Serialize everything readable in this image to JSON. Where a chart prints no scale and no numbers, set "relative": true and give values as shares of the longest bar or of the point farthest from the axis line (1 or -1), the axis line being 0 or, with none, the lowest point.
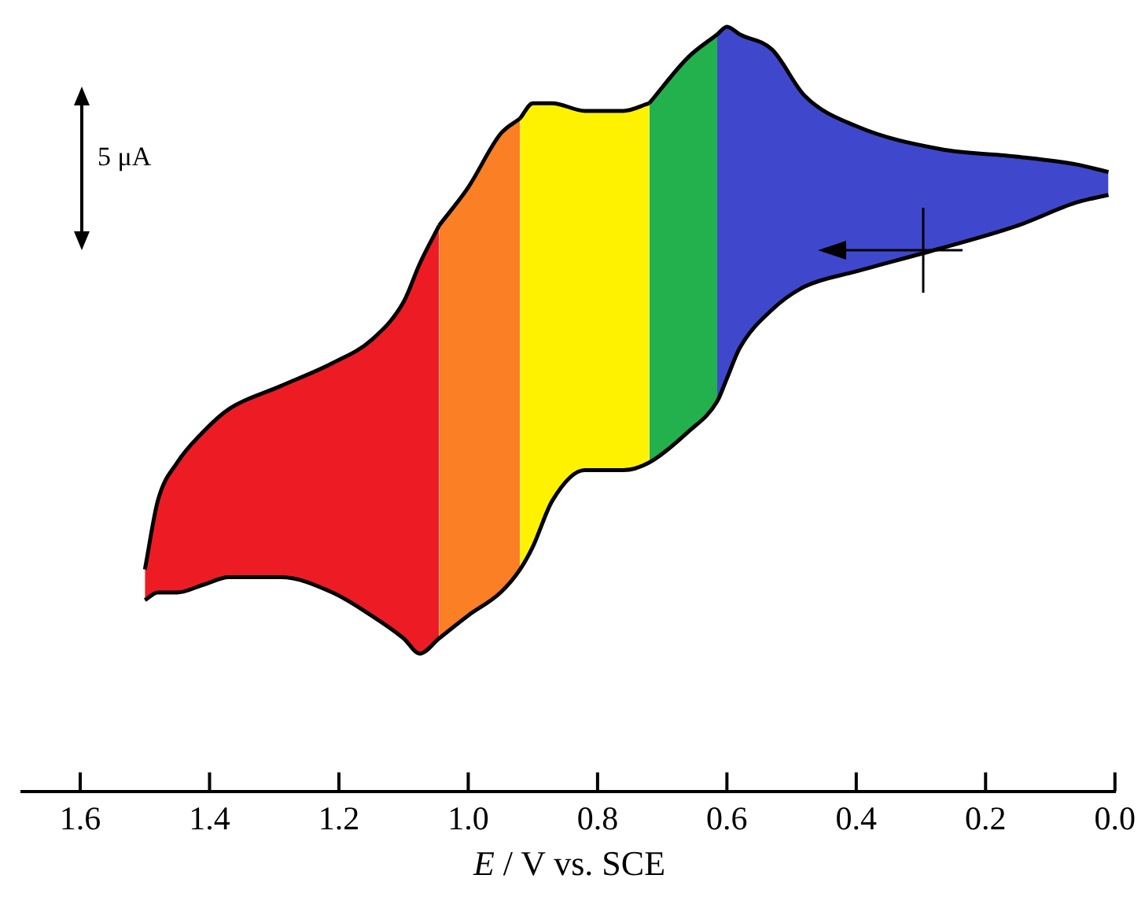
{
  "chart_data": {
    "type": "area",
    "xlabel": "E / V vs. SCE",
    "annotations": [
      "5 μA"
    ],
    "relative": true,
    "xlim": [
      1.69,
      0.0
    ],
    "xticks": [
      1.6,
      1.4,
      1.2,
      {
        "value": 1,
        "label": "1.0"
      },
      0.8,
      0.6,
      0.4,
      0.2,
      {
        "value": 0,
        "label": "0.0"
      }
    ],
    "series": [
      {
        "type": "line",
        "color": "#000000",
        "x": [
          1.5,
          1.48,
          1.45,
          1.41,
          1.37,
          1.29,
          1.21,
          1.15,
          1.1,
          1.075,
          1.045,
          1.0,
          0.95,
          0.92,
          0.9,
          0.87,
          0.82,
          0.76,
          0.72,
          0.66,
          0.615,
          0.6,
          0.58,
          0.53,
          0.48,
          0.4,
          0.27,
          0.15,
          0.06,
          0.01
        ],
        "values": [
          0.25,
          0.26,
          0.26,
          0.27,
          0.28,
          0.28,
          0.26,
          0.23,
          0.2,
          0.18,
          0.2,
          0.23,
          0.26,
          0.29,
          0.32,
          0.38,
          0.42,
          0.42,
          0.43,
          0.47,
          0.51,
          0.54,
          0.58,
          0.63,
          0.66,
          0.68,
          0.71,
          0.74,
          0.77,
          0.78
        ]
      },
      {
        "color": "#ed1c24",
        "x": [
          1.5,
          1.48,
          1.45,
          1.41,
          1.37,
          1.29,
          1.21,
          1.15,
          1.1,
          1.075,
          1.045
        ],
        "values": [
          0.29,
          0.38,
          0.43,
          0.47,
          0.5,
          0.53,
          0.56,
          0.59,
          0.64,
          0.69,
          0.74
        ]
      },
      {
        "color": "#fb7f24",
        "x": [
          1.045,
          1.0,
          0.95,
          0.92
        ],
        "values": [
          0.74,
          0.79,
          0.86,
          0.88
        ]
      },
      {
        "color": "#fff200",
        "x": [
          0.92,
          0.9,
          0.87,
          0.82,
          0.76,
          0.72
        ],
        "values": [
          0.88,
          0.9,
          0.9,
          0.89,
          0.89,
          0.9
        ]
      },
      {
        "color": "#22b14c",
        "x": [
          0.72,
          0.66,
          0.615
        ],
        "values": [
          0.9,
          0.96,
          0.99
        ]
      },
      {
        "color": "#3f48cc",
        "x": [
          0.615,
          0.6,
          0.58,
          0.53,
          0.48,
          0.4,
          0.27,
          0.15,
          0.06,
          0.01
        ],
        "values": [
          0.99,
          1.0,
          0.99,
          0.97,
          0.91,
          0.87,
          0.84,
          0.83,
          0.82,
          0.81
        ]
      }
    ]
  }
}
